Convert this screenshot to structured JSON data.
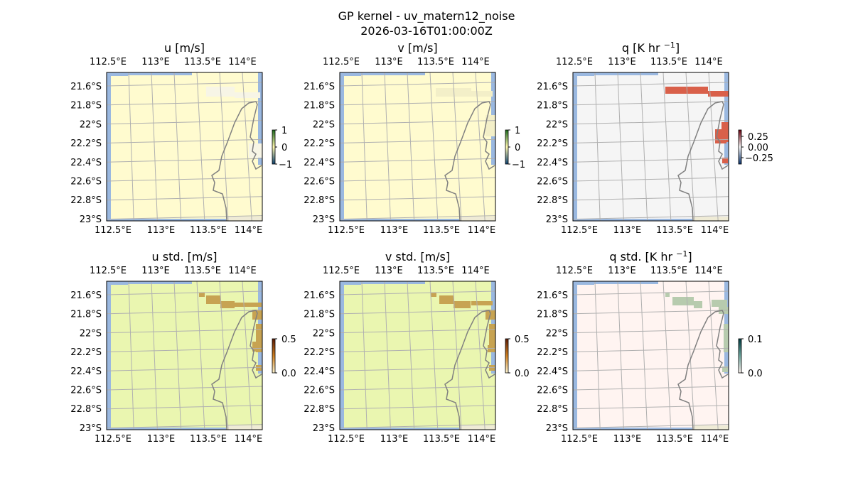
{
  "figure": {
    "title": "GP kernel - uv_matern12_noise",
    "subtitle": "2026-03-16T01:00:00Z"
  },
  "axes": {
    "lon_labels": [
      "112.5°E",
      "113°E",
      "113.5°E",
      "114°E"
    ],
    "lat_labels": [
      "21.6°S",
      "21.8°S",
      "22°S",
      "22.2°S",
      "22.4°S",
      "22.6°S",
      "22.8°S",
      "23°S"
    ]
  },
  "colors": {
    "ocean": "#9ab8e0",
    "land": "#efebd6",
    "coastline": "#808080",
    "gridline": "#b0b0b0"
  },
  "panels": [
    {
      "title": "u [m/s]",
      "title_sup": "",
      "title_end": "",
      "fill": "#fffbcf",
      "patch_color": "#f7f5e6",
      "colorbar_ticks": [
        "1",
        "0",
        "−1"
      ],
      "colorbar_gradient": [
        "#0a3f6e",
        "#fff8b0",
        "#1a6a1a"
      ]
    },
    {
      "title": "v [m/s]",
      "title_sup": "",
      "title_end": "",
      "fill": "#fffbcf",
      "patch_color": "#f3efc8",
      "colorbar_ticks": [
        "1",
        "0",
        "−1"
      ],
      "colorbar_gradient": [
        "#0a3f6e",
        "#fff8b0",
        "#1a6a1a"
      ]
    },
    {
      "title": "q [K hr ",
      "title_sup": "−1",
      "title_end": "]",
      "fill": "#f5f5f5",
      "patch_color": "#d9604a",
      "colorbar_ticks": [
        "0.25",
        "0.00",
        "−0.25"
      ],
      "colorbar_gradient": [
        "#08306b",
        "#f7f7f7",
        "#67000d"
      ]
    },
    {
      "title": "u std. [m/s]",
      "title_sup": "",
      "title_end": "",
      "fill": "#eaf6b0",
      "patch_color": "#c7a352",
      "colorbar_ticks": [
        "0.5",
        "0.0"
      ],
      "colorbar_gradient": [
        "#fff5d0",
        "#d08020",
        "#5a1a05"
      ]
    },
    {
      "title": "v std. [m/s]",
      "title_sup": "",
      "title_end": "",
      "fill": "#eaf6b0",
      "patch_color": "#c7a352",
      "colorbar_ticks": [
        "0.5",
        "0.0"
      ],
      "colorbar_gradient": [
        "#fff5d0",
        "#d08020",
        "#5a1a05"
      ]
    },
    {
      "title": "q std. [K hr ",
      "title_sup": "−1",
      "title_end": "]",
      "fill": "#fff4f1",
      "patch_color": "#b7cbae",
      "colorbar_ticks": [
        "0.1",
        "0.0"
      ],
      "colorbar_gradient": [
        "#fff4f0",
        "#70a8a0",
        "#003a40"
      ]
    }
  ]
}
